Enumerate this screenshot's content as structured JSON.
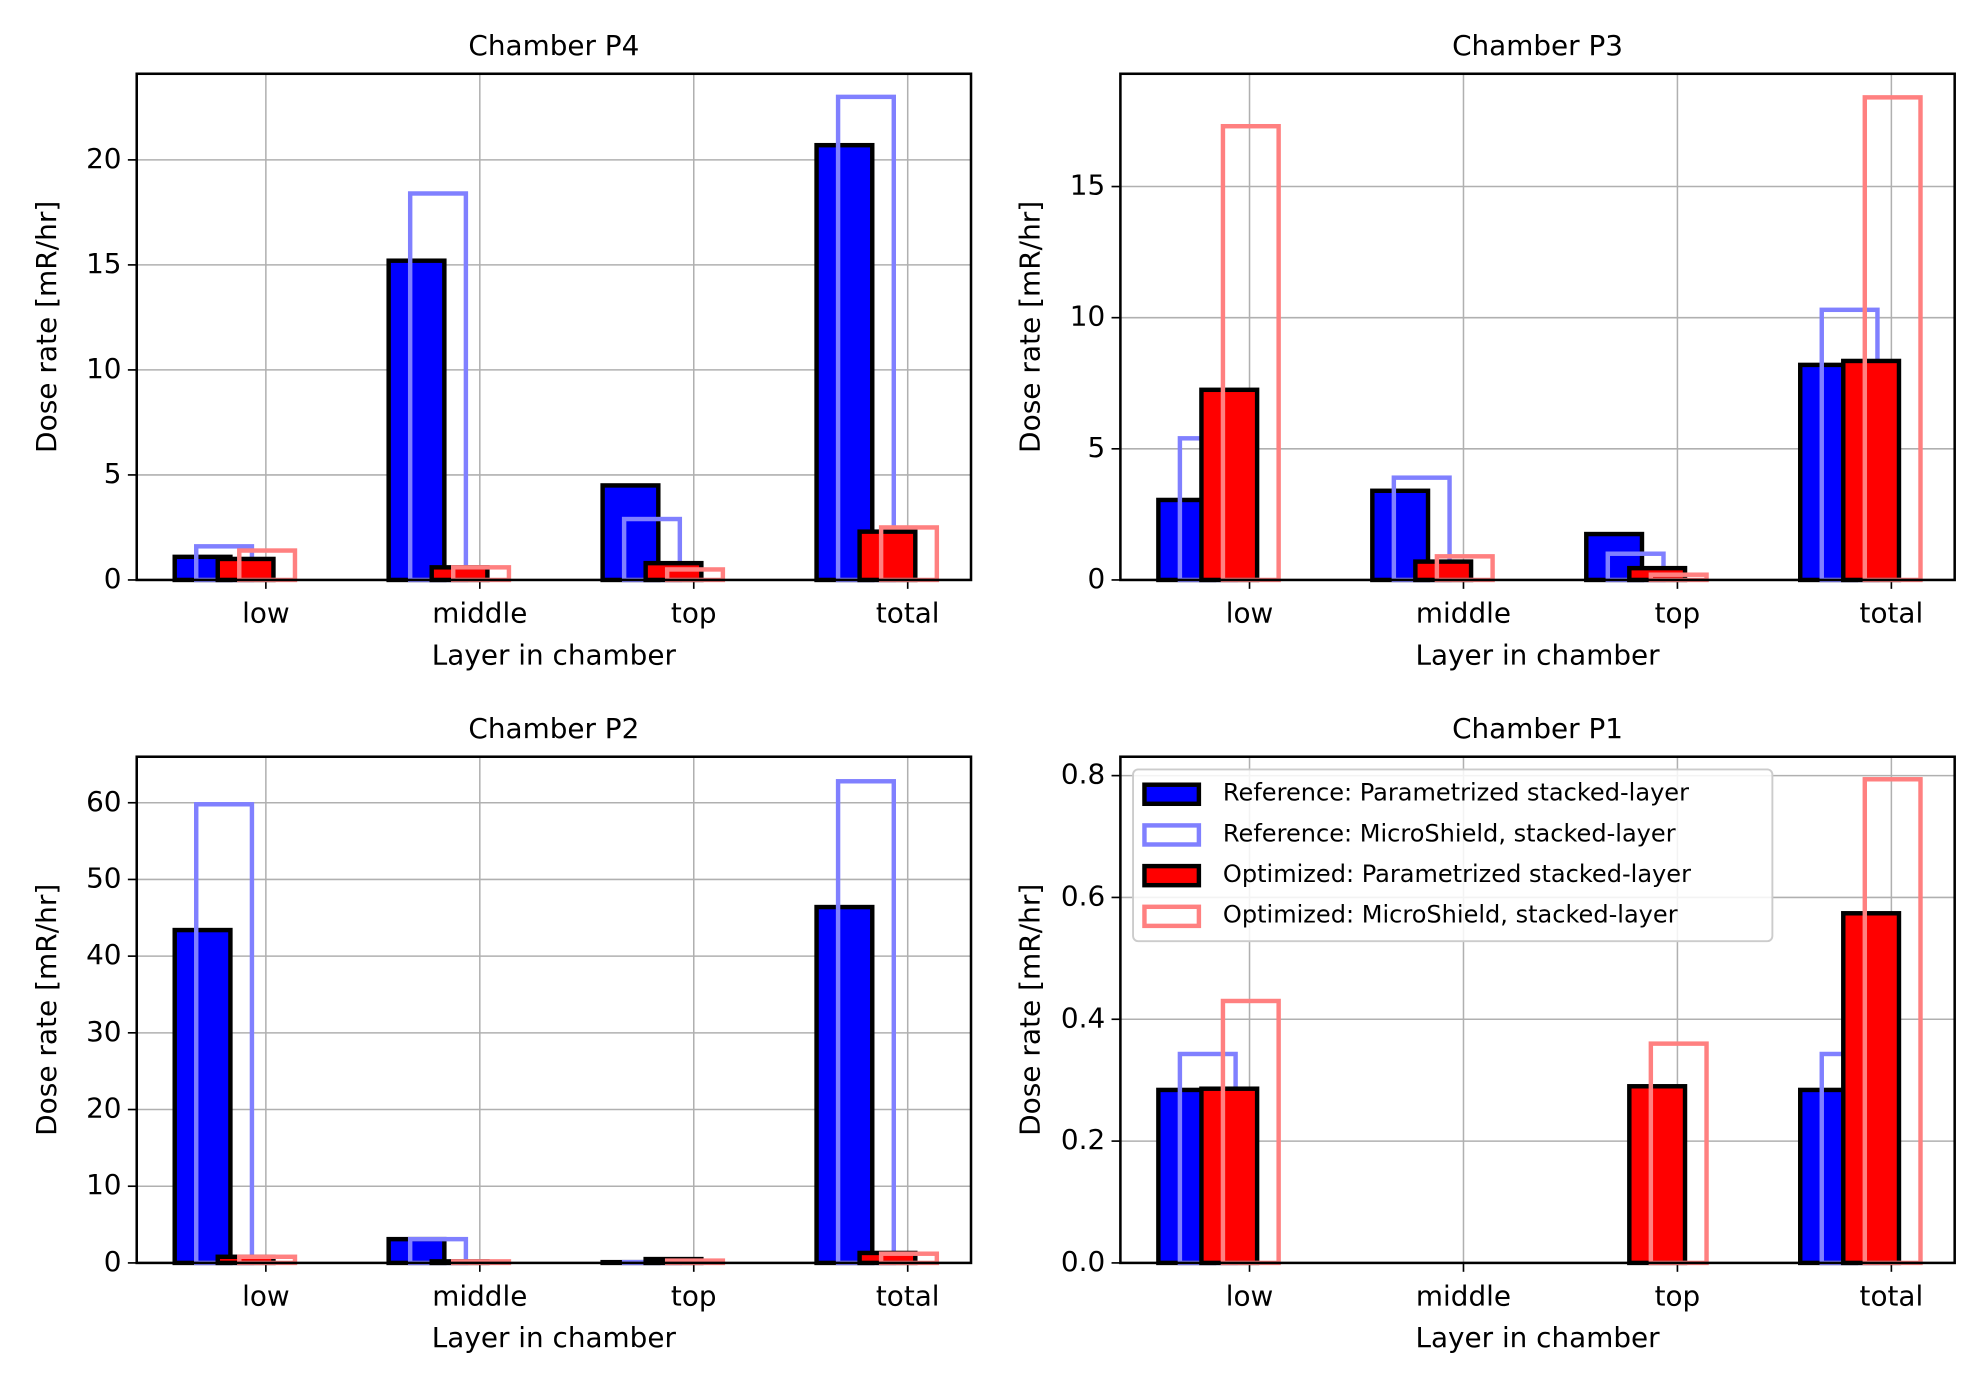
{
  "chart_data": [
    {
      "type": "bar",
      "title": "Chamber P4",
      "xlabel": "Layer in chamber",
      "ylabel": "Dose rate [mR/hr]",
      "categories": [
        "low",
        "middle",
        "top",
        "total"
      ],
      "series": [
        {
          "name": "Reference: Parametrized stacked-layer",
          "color": "#0000ff",
          "style": "filled",
          "values": [
            1.1,
            15.2,
            4.5,
            20.7
          ]
        },
        {
          "name": "Reference: MicroShield, stacked-layer",
          "color": "#8080ff",
          "style": "outline",
          "values": [
            1.6,
            18.4,
            2.9,
            23.0
          ]
        },
        {
          "name": "Optimized: Parametrized stacked-layer",
          "color": "#ff0000",
          "style": "filled",
          "values": [
            1.0,
            0.6,
            0.8,
            2.3
          ]
        },
        {
          "name": "Optimized: MicroShield, stacked-layer",
          "color": "#ff8080",
          "style": "outline",
          "values": [
            1.4,
            0.6,
            0.5,
            2.5
          ]
        }
      ],
      "ylim": [
        0,
        24.1
      ],
      "yticks": [
        0,
        5,
        10,
        15,
        20
      ],
      "grid": true
    },
    {
      "type": "bar",
      "title": "Chamber P3",
      "xlabel": "Layer in chamber",
      "ylabel": "Dose rate [mR/hr]",
      "categories": [
        "low",
        "middle",
        "top",
        "total"
      ],
      "series": [
        {
          "name": "Reference: Parametrized stacked-layer",
          "color": "#0000ff",
          "style": "filled",
          "values": [
            3.05,
            3.4,
            1.75,
            8.2
          ]
        },
        {
          "name": "Reference: MicroShield, stacked-layer",
          "color": "#8080ff",
          "style": "outline",
          "values": [
            5.4,
            3.9,
            1.0,
            10.3
          ]
        },
        {
          "name": "Optimized: Parametrized stacked-layer",
          "color": "#ff0000",
          "style": "filled",
          "values": [
            7.25,
            0.7,
            0.45,
            8.35
          ]
        },
        {
          "name": "Optimized: MicroShield, stacked-layer",
          "color": "#ff8080",
          "style": "outline",
          "values": [
            17.3,
            0.9,
            0.2,
            18.4
          ]
        }
      ],
      "ylim": [
        0,
        19.3
      ],
      "yticks": [
        0,
        5,
        10,
        15
      ],
      "grid": true
    },
    {
      "type": "bar",
      "title": "Chamber P2",
      "xlabel": "Layer in chamber",
      "ylabel": "Dose rate [mR/hr]",
      "categories": [
        "low",
        "middle",
        "top",
        "total"
      ],
      "series": [
        {
          "name": "Reference: Parametrized stacked-layer",
          "color": "#0000ff",
          "style": "filled",
          "values": [
            43.4,
            3.1,
            0.1,
            46.4
          ]
        },
        {
          "name": "Reference: MicroShield, stacked-layer",
          "color": "#8080ff",
          "style": "outline",
          "values": [
            59.8,
            3.1,
            0.1,
            62.8
          ]
        },
        {
          "name": "Optimized: Parametrized stacked-layer",
          "color": "#ff0000",
          "style": "filled",
          "values": [
            0.8,
            0.2,
            0.5,
            1.3
          ]
        },
        {
          "name": "Optimized: MicroShield, stacked-layer",
          "color": "#ff8080",
          "style": "outline",
          "values": [
            0.8,
            0.2,
            0.3,
            1.2
          ]
        }
      ],
      "ylim": [
        0,
        66
      ],
      "yticks": [
        0,
        10,
        20,
        30,
        40,
        50,
        60
      ],
      "grid": true
    },
    {
      "type": "bar",
      "title": "Chamber P1",
      "xlabel": "Layer in chamber",
      "ylabel": "Dose rate [mR/hr]",
      "categories": [
        "low",
        "middle",
        "top",
        "total"
      ],
      "series": [
        {
          "name": "Reference: Parametrized stacked-layer",
          "color": "#0000ff",
          "style": "filled",
          "values": [
            0.284,
            0,
            0,
            0.284
          ]
        },
        {
          "name": "Reference: MicroShield, stacked-layer",
          "color": "#8080ff",
          "style": "outline",
          "values": [
            0.343,
            0,
            0,
            0.343
          ]
        },
        {
          "name": "Optimized: Parametrized stacked-layer",
          "color": "#ff0000",
          "style": "filled",
          "values": [
            0.286,
            0,
            0.29,
            0.574
          ]
        },
        {
          "name": "Optimized: MicroShield, stacked-layer",
          "color": "#ff8080",
          "style": "outline",
          "values": [
            0.43,
            0,
            0.36,
            0.794
          ]
        }
      ],
      "ylim": [
        0,
        0.831
      ],
      "yticks": [
        {
          "value": 0,
          "label": "0.0"
        },
        0.2,
        0.4,
        0.6,
        0.8
      ],
      "grid": true,
      "legend": "upper left"
    }
  ]
}
